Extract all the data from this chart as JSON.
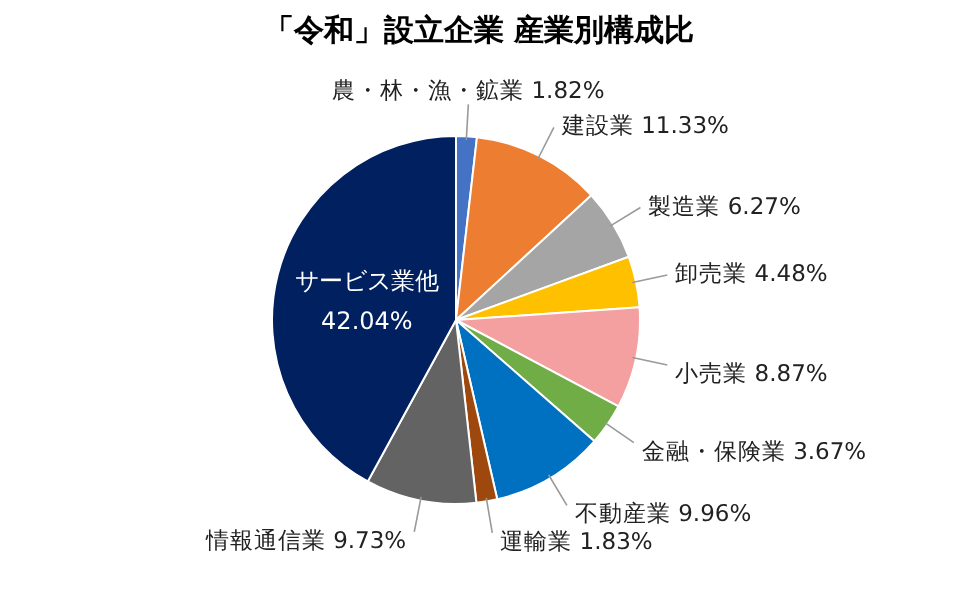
{
  "chart_data": {
    "type": "pie",
    "title": "「令和」設立企業 産業別構成比",
    "categories": [
      "農・林・漁・鉱業",
      "建設業",
      "製造業",
      "卸売業",
      "小売業",
      "金融・保険業",
      "不動産業",
      "運輸業",
      "情報通信業",
      "サービス業他"
    ],
    "values": [
      1.82,
      11.33,
      6.27,
      4.48,
      8.87,
      3.67,
      9.96,
      1.83,
      9.73,
      42.04
    ],
    "value_labels": [
      "1.82%",
      "11.33%",
      "6.27%",
      "4.48%",
      "8.87%",
      "3.67%",
      "9.96%",
      "1.83%",
      "9.73%",
      "42.04%"
    ],
    "colors": [
      "#4472c4",
      "#ed7d31",
      "#a5a5a5",
      "#ffc000",
      "#f4a0a0",
      "#70ad47",
      "#0070c0",
      "#9e480e",
      "#636363",
      "#002060"
    ]
  }
}
